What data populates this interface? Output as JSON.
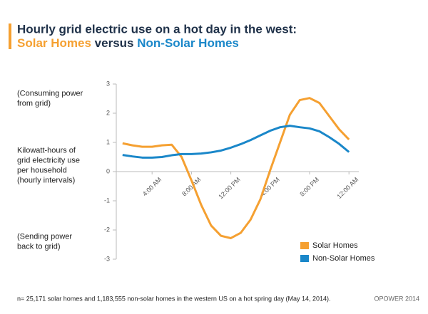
{
  "chart_data": {
    "type": "line",
    "title": "Hourly grid electric use on a hot day in the west:",
    "subtitle": [
      "Solar Homes",
      "versus",
      "Non-Solar Homes"
    ],
    "y_annotations": [
      [
        "(Consuming power",
        "from grid)"
      ],
      [
        "Kilowatt-hours of",
        "grid electricity use",
        "per household",
        "(hourly intervals)"
      ],
      [
        "(Sending power",
        "back to grid)"
      ]
    ],
    "x": [
      1,
      2,
      3,
      4,
      5,
      6,
      7,
      8,
      9,
      10,
      11,
      12,
      13,
      14,
      15,
      16,
      17,
      18,
      19,
      20,
      21,
      22,
      23,
      24
    ],
    "xlim": [
      0,
      25
    ],
    "xticks": [
      {
        "value": 4,
        "label": "4:00 AM"
      },
      {
        "value": 8,
        "label": "8:00 AM"
      },
      {
        "value": 12,
        "label": "12:00 PM"
      },
      {
        "value": 16,
        "label": "4:00 PM"
      },
      {
        "value": 20,
        "label": "8:00 PM"
      },
      {
        "value": 24,
        "label": "12:00 AM"
      }
    ],
    "ylim": [
      -3,
      3
    ],
    "yticks": [
      -3,
      -2,
      -1,
      0,
      1,
      2,
      3
    ],
    "series": [
      {
        "name": "Solar Homes",
        "color": "#f5a031",
        "values": [
          0.97,
          0.9,
          0.85,
          0.85,
          0.9,
          0.92,
          0.5,
          -0.3,
          -1.15,
          -1.85,
          -2.2,
          -2.28,
          -2.1,
          -1.65,
          -0.95,
          0.05,
          1.0,
          1.95,
          2.45,
          2.52,
          2.35,
          1.9,
          1.45,
          1.1
        ]
      },
      {
        "name": "Non-Solar Homes",
        "color": "#1a87c9",
        "values": [
          0.57,
          0.52,
          0.48,
          0.48,
          0.5,
          0.56,
          0.6,
          0.6,
          0.62,
          0.66,
          0.72,
          0.82,
          0.94,
          1.08,
          1.24,
          1.4,
          1.52,
          1.57,
          1.52,
          1.48,
          1.38,
          1.18,
          0.95,
          0.67
        ]
      }
    ],
    "footnote": "n= 25,171 solar homes and 1,183,555 non-solar homes in the western US on a hot spring day (May 14, 2014).",
    "source": "OPOWER 2014"
  }
}
